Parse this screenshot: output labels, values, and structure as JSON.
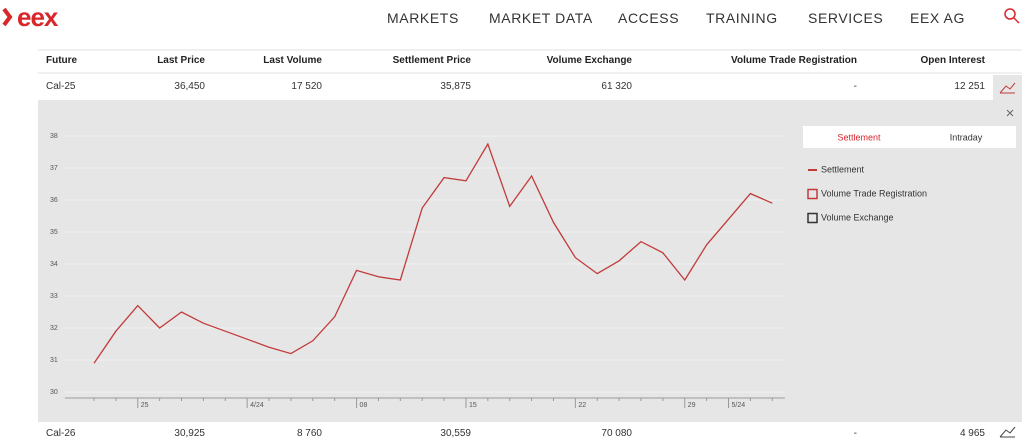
{
  "header": {
    "logo": "eex",
    "nav": [
      "MARKETS",
      "MARKET DATA",
      "ACCESS",
      "TRAINING",
      "SERVICES",
      "EEX AG"
    ]
  },
  "table": {
    "columns": [
      "Future",
      "Last Price",
      "Last Volume",
      "Settlement Price",
      "Volume Exchange",
      "Volume Trade Registration",
      "Open Interest"
    ],
    "rows": [
      [
        "Cal-25",
        "36,450",
        "17 520",
        "35,875",
        "61 320",
        "-",
        "12 251"
      ],
      [
        "Cal-26",
        "30,925",
        "8 760",
        "30,559",
        "70 080",
        "-",
        "4 965"
      ]
    ]
  },
  "chart_data": {
    "type": "line",
    "tabs": [
      "Settlement",
      "Intraday"
    ],
    "categories": [
      null,
      null,
      "25",
      null,
      null,
      null,
      null,
      "4/24",
      null,
      null,
      null,
      null,
      "08",
      null,
      null,
      null,
      null,
      "15",
      null,
      null,
      null,
      null,
      "22",
      null,
      null,
      null,
      null,
      "29",
      null,
      "5/24",
      null,
      null
    ],
    "series": [
      {
        "name": "Settlement",
        "color": "#c23b3b",
        "values": [
          30.9,
          31.9,
          32.7,
          32.0,
          32.5,
          32.15,
          31.9,
          31.65,
          31.4,
          31.2,
          31.6,
          32.35,
          33.8,
          33.6,
          33.5,
          35.75,
          36.7,
          36.6,
          37.75,
          35.8,
          36.75,
          35.3,
          34.2,
          33.7,
          34.1,
          34.7,
          34.35,
          33.5,
          34.6,
          35.4,
          36.2,
          35.9
        ]
      }
    ],
    "legend_extra": [
      {
        "name": "Volume Trade Registration",
        "color": "#c23b3b"
      },
      {
        "name": "Volume Exchange",
        "color": "#333333"
      }
    ],
    "ylim": [
      30,
      38
    ],
    "yticks": [
      30,
      31,
      32,
      33,
      34,
      35,
      36,
      37,
      38
    ],
    "grid": true
  }
}
